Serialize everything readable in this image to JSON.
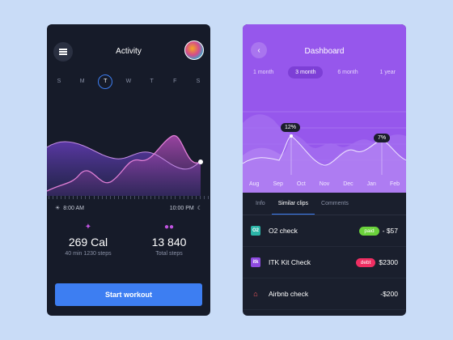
{
  "activity": {
    "title": "Activity",
    "days": [
      {
        "label": "S",
        "selected": false
      },
      {
        "label": "M",
        "selected": false
      },
      {
        "label": "T",
        "selected": true
      },
      {
        "label": "W",
        "selected": false
      },
      {
        "label": "T",
        "selected": false
      },
      {
        "label": "F",
        "selected": false
      },
      {
        "label": "S",
        "selected": false
      }
    ],
    "time_start": "8:00 AM",
    "time_end": "10:00 PM",
    "stats": [
      {
        "icon": "running-icon",
        "value": "269 Cal",
        "label": "40 min 1230 steps"
      },
      {
        "icon": "footsteps-icon",
        "value": "13 840",
        "label": "Total steps"
      }
    ],
    "start_button": "Start workout",
    "colors": {
      "accent": "#3d7ef2",
      "pink": "#e07fd6",
      "purple": "#c054e0"
    }
  },
  "dashboard": {
    "title": "Dashboard",
    "periods": [
      {
        "label": "1 month",
        "selected": false
      },
      {
        "label": "3 month",
        "selected": true
      },
      {
        "label": "6 month",
        "selected": false
      },
      {
        "label": "1 year",
        "selected": false
      }
    ],
    "months": [
      "Aug",
      "Sep",
      "Oct",
      "Nov",
      "Dec",
      "Jan",
      "Feb"
    ],
    "callouts": [
      "12%",
      "7%"
    ],
    "tabs": [
      {
        "label": "Info",
        "selected": false
      },
      {
        "label": "Similar clips",
        "selected": true
      },
      {
        "label": "Comments",
        "selected": false
      }
    ],
    "rows": [
      {
        "icon": "o2-icon",
        "icon_text": "O2",
        "icon_color": "#2bb5a8",
        "label": "O2 check",
        "badge": "paid",
        "badge_color": "#6bd23c",
        "amount": "- $57"
      },
      {
        "icon": "itk-icon",
        "icon_text": "itk",
        "icon_color": "#8e4be0",
        "label": "ITK Kit Check",
        "badge": "debt",
        "badge_color": "#ef2e62",
        "amount": "$2300"
      },
      {
        "icon": "airbnb-icon",
        "icon_text": "",
        "icon_color": "#ff5a5f",
        "label": "Airbnb check",
        "badge": "",
        "badge_color": "",
        "amount": "-$200"
      }
    ]
  }
}
